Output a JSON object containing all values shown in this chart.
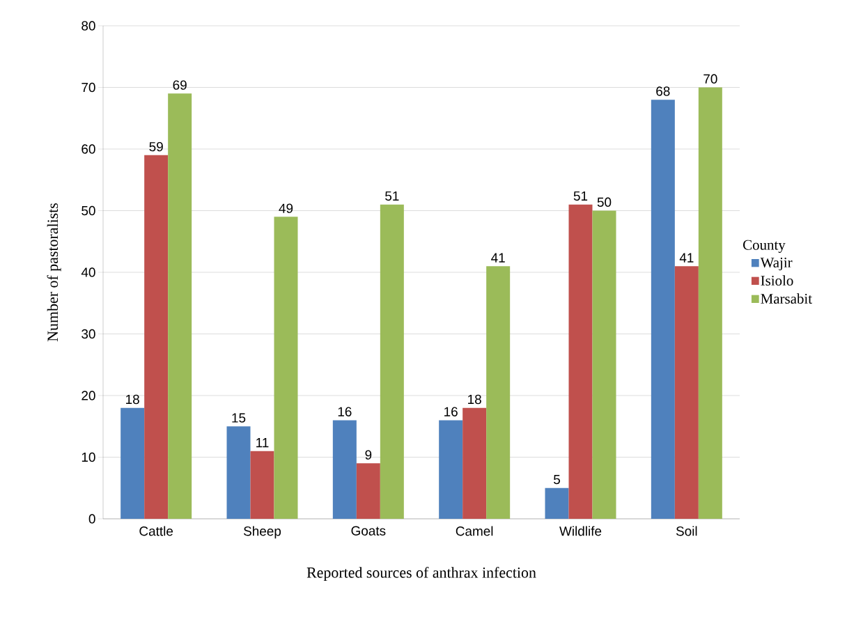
{
  "chart_data": {
    "type": "bar",
    "xlabel": "Reported sources of anthrax infection",
    "ylabel": "Number of pastoralists",
    "legend_title": "County",
    "categories": [
      "Cattle",
      "Sheep",
      "Goats",
      "Camel",
      "Wildlife",
      "Soil"
    ],
    "series": [
      {
        "name": "Wajir",
        "color": "#4f81bd",
        "values": [
          18,
          15,
          16,
          16,
          5,
          68
        ]
      },
      {
        "name": "Isiolo",
        "color": "#c0504d",
        "values": [
          59,
          11,
          9,
          18,
          51,
          41
        ]
      },
      {
        "name": "Marsabit",
        "color": "#9bbb59",
        "values": [
          69,
          49,
          51,
          41,
          50,
          70
        ]
      }
    ],
    "ylim": [
      0,
      80
    ],
    "yticks": [
      0,
      10,
      20,
      30,
      40,
      50,
      60,
      70,
      80
    ],
    "grid": "y",
    "legend": "right",
    "data_labels": true
  }
}
